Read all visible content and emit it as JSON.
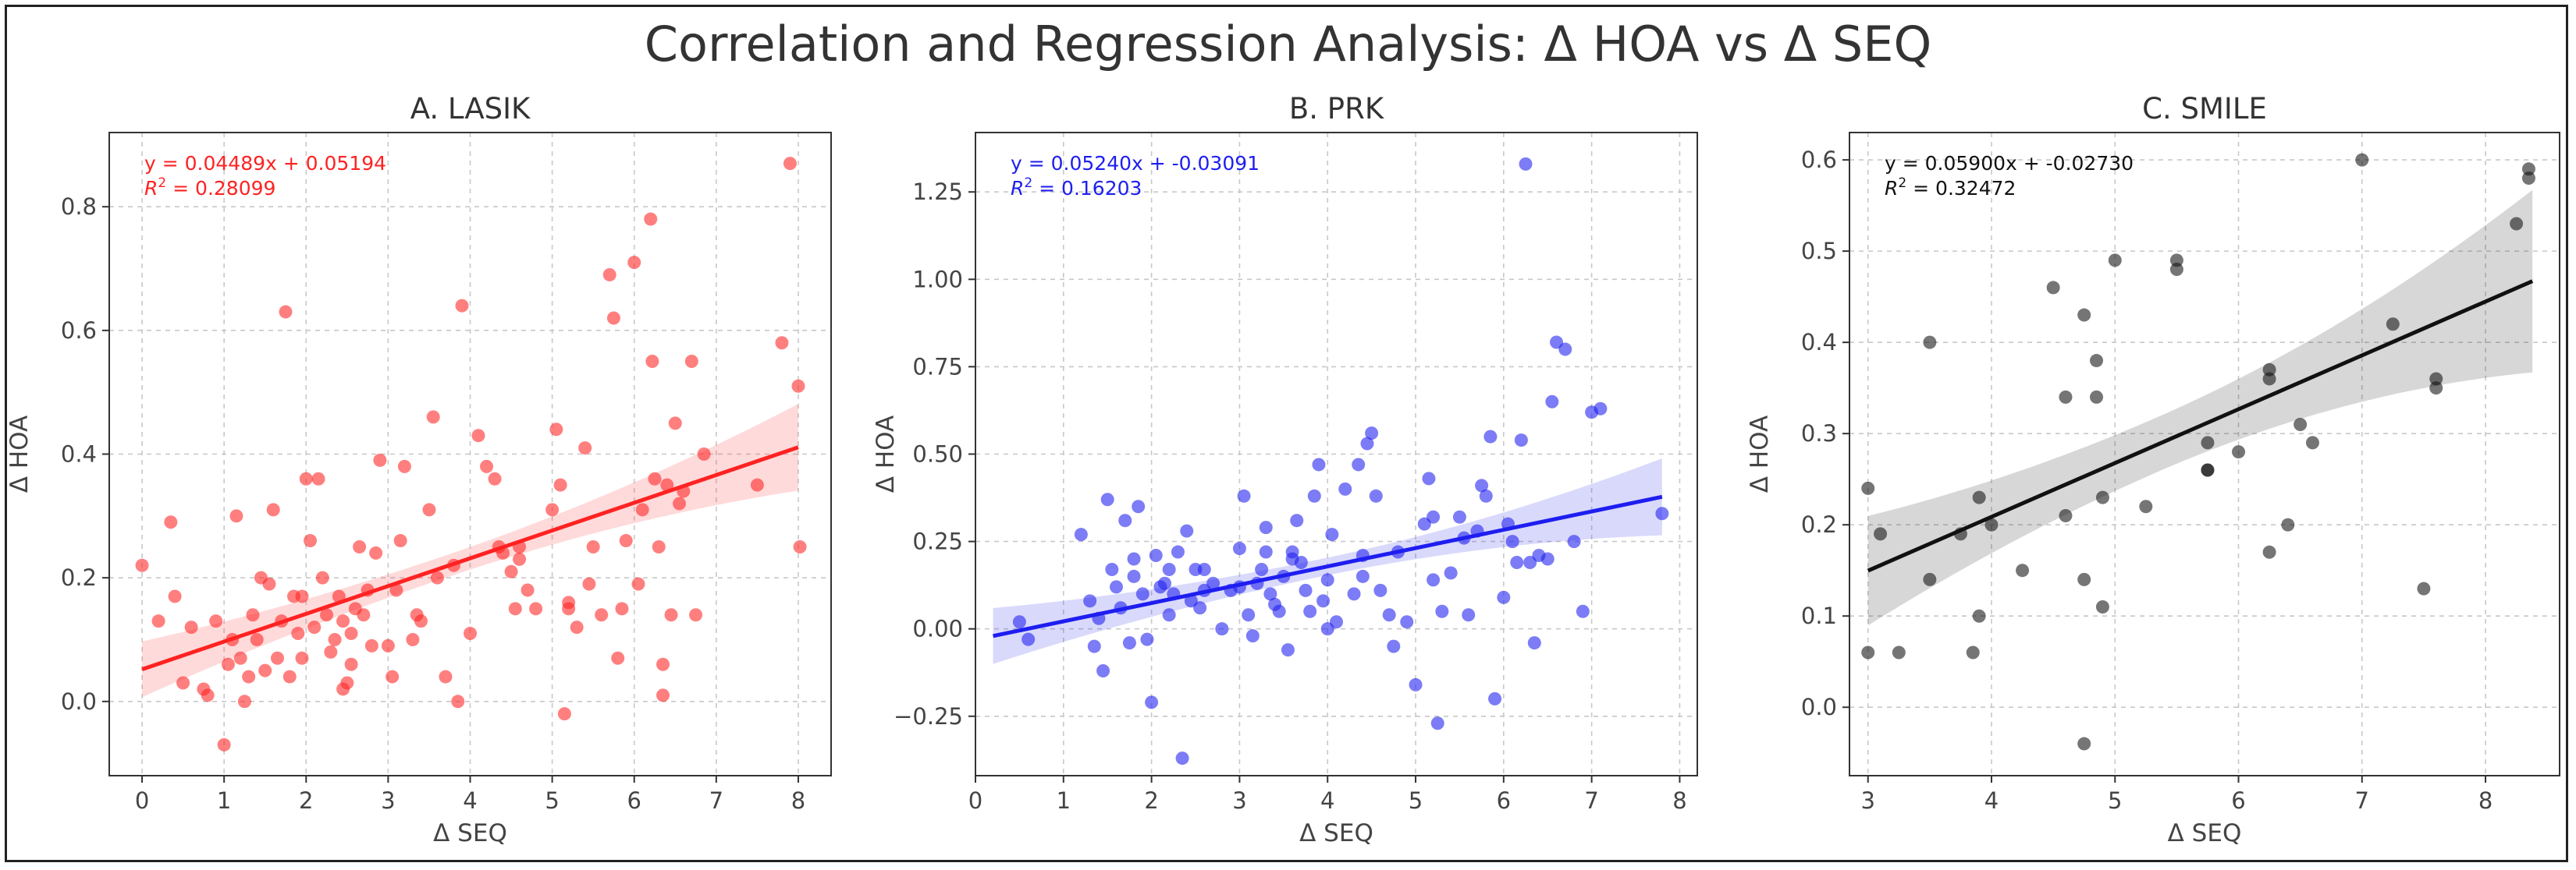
{
  "figure": {
    "title": "Correlation and Regression Analysis: Δ HOA vs Δ SEQ"
  },
  "chart_data": [
    {
      "panel": "A",
      "type": "scatter",
      "title": "A. LASIK",
      "xlabel": "Δ SEQ",
      "ylabel": "Δ HOA",
      "xlim": [
        -0.4,
        8.4
      ],
      "ylim": [
        -0.12,
        0.92
      ],
      "xticks": [
        0,
        1,
        2,
        3,
        4,
        5,
        6,
        7,
        8
      ],
      "yticks": [
        0.0,
        0.2,
        0.4,
        0.6,
        0.8
      ],
      "ytick_labels": [
        "0.0",
        "0.2",
        "0.4",
        "0.6",
        "0.8"
      ],
      "color": "#ff2222",
      "equation": "y = 0.04489x + 0.05194",
      "r2_prefix": "R",
      "r2_sup": "2",
      "r2_value": " = 0.28099",
      "slope": 0.04489,
      "intercept": 0.05194,
      "ci_halfwidth": {
        "at_mean": 0.018,
        "at_min": 0.045,
        "at_max": 0.07
      },
      "fit_range": [
        0,
        8
      ],
      "points": [
        [
          0,
          0.22
        ],
        [
          0.2,
          0.13
        ],
        [
          0.35,
          0.29
        ],
        [
          0.4,
          0.17
        ],
        [
          0.5,
          0.03
        ],
        [
          0.6,
          0.12
        ],
        [
          0.75,
          0.02
        ],
        [
          0.8,
          0.01
        ],
        [
          0.9,
          0.13
        ],
        [
          1.0,
          -0.07
        ],
        [
          1.05,
          0.06
        ],
        [
          1.1,
          0.1
        ],
        [
          1.15,
          0.3
        ],
        [
          1.2,
          0.07
        ],
        [
          1.25,
          0.0
        ],
        [
          1.3,
          0.04
        ],
        [
          1.35,
          0.14
        ],
        [
          1.4,
          0.1
        ],
        [
          1.45,
          0.2
        ],
        [
          1.5,
          0.05
        ],
        [
          1.55,
          0.19
        ],
        [
          1.6,
          0.31
        ],
        [
          1.65,
          0.07
        ],
        [
          1.7,
          0.13
        ],
        [
          1.75,
          0.63
        ],
        [
          1.8,
          0.04
        ],
        [
          1.85,
          0.17
        ],
        [
          1.9,
          0.11
        ],
        [
          1.95,
          0.07
        ],
        [
          2.0,
          0.36
        ],
        [
          2.05,
          0.26
        ],
        [
          2.1,
          0.12
        ],
        [
          2.15,
          0.36
        ],
        [
          2.2,
          0.2
        ],
        [
          2.25,
          0.14
        ],
        [
          2.3,
          0.08
        ],
        [
          2.35,
          0.1
        ],
        [
          2.4,
          0.17
        ],
        [
          2.45,
          0.02
        ],
        [
          2.5,
          0.03
        ],
        [
          2.55,
          0.11
        ],
        [
          2.6,
          0.15
        ],
        [
          2.65,
          0.25
        ],
        [
          2.7,
          0.14
        ],
        [
          2.75,
          0.18
        ],
        [
          2.8,
          0.09
        ],
        [
          2.85,
          0.24
        ],
        [
          2.9,
          0.39
        ],
        [
          3.0,
          0.09
        ],
        [
          3.05,
          0.04
        ],
        [
          3.1,
          0.18
        ],
        [
          3.15,
          0.26
        ],
        [
          3.2,
          0.38
        ],
        [
          3.3,
          0.1
        ],
        [
          3.4,
          0.13
        ],
        [
          3.5,
          0.31
        ],
        [
          3.55,
          0.46
        ],
        [
          3.6,
          0.2
        ],
        [
          3.7,
          0.04
        ],
        [
          3.8,
          0.22
        ],
        [
          3.85,
          0.0
        ],
        [
          3.9,
          0.64
        ],
        [
          4.0,
          0.11
        ],
        [
          4.1,
          0.43
        ],
        [
          4.2,
          0.38
        ],
        [
          4.3,
          0.36
        ],
        [
          4.35,
          0.25
        ],
        [
          4.4,
          0.24
        ],
        [
          4.5,
          0.21
        ],
        [
          4.55,
          0.15
        ],
        [
          4.6,
          0.25
        ],
        [
          4.7,
          0.18
        ],
        [
          4.8,
          0.15
        ],
        [
          5.0,
          0.31
        ],
        [
          5.05,
          0.44
        ],
        [
          5.1,
          0.35
        ],
        [
          5.15,
          -0.02
        ],
        [
          5.2,
          0.16
        ],
        [
          5.3,
          0.12
        ],
        [
          5.4,
          0.41
        ],
        [
          5.45,
          0.19
        ],
        [
          5.5,
          0.25
        ],
        [
          5.6,
          0.14
        ],
        [
          5.7,
          0.69
        ],
        [
          5.75,
          0.62
        ],
        [
          5.8,
          0.07
        ],
        [
          5.85,
          0.15
        ],
        [
          5.9,
          0.26
        ],
        [
          6.0,
          0.71
        ],
        [
          6.05,
          0.19
        ],
        [
          6.1,
          0.31
        ],
        [
          6.2,
          0.78
        ],
        [
          6.22,
          0.55
        ],
        [
          6.25,
          0.36
        ],
        [
          6.3,
          0.25
        ],
        [
          6.35,
          0.01
        ],
        [
          6.4,
          0.35
        ],
        [
          6.45,
          0.14
        ],
        [
          6.5,
          0.45
        ],
        [
          6.55,
          0.32
        ],
        [
          6.6,
          0.34
        ],
        [
          6.7,
          0.55
        ],
        [
          6.75,
          0.14
        ],
        [
          6.85,
          0.4
        ],
        [
          7.5,
          0.35
        ],
        [
          7.8,
          0.58
        ],
        [
          7.9,
          0.87
        ],
        [
          8.0,
          0.51
        ],
        [
          8.02,
          0.25
        ],
        [
          6.35,
          0.06
        ],
        [
          5.2,
          0.15
        ],
        [
          4.6,
          0.23
        ],
        [
          2.45,
          0.13
        ],
        [
          1.95,
          0.17
        ],
        [
          3.35,
          0.14
        ],
        [
          2.55,
          0.06
        ]
      ]
    },
    {
      "panel": "B",
      "type": "scatter",
      "title": "B. PRK",
      "xlabel": "Δ SEQ",
      "ylabel": "Δ HOA",
      "xlim": [
        0,
        8.2
      ],
      "ylim": [
        -0.42,
        1.42
      ],
      "xticks": [
        0,
        1,
        2,
        3,
        4,
        5,
        6,
        7,
        8
      ],
      "yticks": [
        -0.25,
        0.0,
        0.25,
        0.5,
        0.75,
        1.0,
        1.25
      ],
      "ytick_labels": [
        "−0.25",
        "0.00",
        "0.25",
        "0.50",
        "0.75",
        "1.00",
        "1.25"
      ],
      "color": "#1e1ef0",
      "equation": "y = 0.05240x + -0.03091",
      "r2_prefix": "R",
      "r2_sup": "2",
      "r2_value": " = 0.16203",
      "slope": 0.0524,
      "intercept": -0.03091,
      "ci_halfwidth": {
        "at_mean": 0.025,
        "at_min": 0.08,
        "at_max": 0.11
      },
      "fit_range": [
        0.2,
        7.8
      ],
      "points": [
        [
          0.5,
          0.02
        ],
        [
          0.6,
          -0.03
        ],
        [
          1.2,
          0.27
        ],
        [
          1.3,
          0.08
        ],
        [
          1.35,
          -0.05
        ],
        [
          1.4,
          0.03
        ],
        [
          1.45,
          -0.12
        ],
        [
          1.5,
          0.37
        ],
        [
          1.55,
          0.17
        ],
        [
          1.6,
          0.12
        ],
        [
          1.65,
          0.06
        ],
        [
          1.7,
          0.31
        ],
        [
          1.75,
          -0.04
        ],
        [
          1.8,
          0.15
        ],
        [
          1.85,
          0.35
        ],
        [
          1.9,
          0.1
        ],
        [
          1.95,
          -0.03
        ],
        [
          2.0,
          -0.21
        ],
        [
          2.05,
          0.21
        ],
        [
          2.1,
          0.12
        ],
        [
          2.15,
          0.13
        ],
        [
          2.2,
          0.04
        ],
        [
          2.25,
          0.1
        ],
        [
          2.3,
          0.22
        ],
        [
          2.35,
          -0.37
        ],
        [
          2.4,
          0.28
        ],
        [
          2.45,
          0.08
        ],
        [
          2.5,
          0.17
        ],
        [
          2.55,
          0.06
        ],
        [
          2.6,
          0.11
        ],
        [
          2.7,
          0.13
        ],
        [
          2.8,
          0.0
        ],
        [
          2.9,
          0.11
        ],
        [
          3.0,
          0.23
        ],
        [
          3.05,
          0.38
        ],
        [
          3.1,
          0.04
        ],
        [
          3.15,
          -0.02
        ],
        [
          3.2,
          0.13
        ],
        [
          3.25,
          0.17
        ],
        [
          3.3,
          0.29
        ],
        [
          3.35,
          0.1
        ],
        [
          3.4,
          0.07
        ],
        [
          3.45,
          0.05
        ],
        [
          3.5,
          0.15
        ],
        [
          3.55,
          -0.06
        ],
        [
          3.6,
          0.22
        ],
        [
          3.65,
          0.31
        ],
        [
          3.7,
          0.19
        ],
        [
          3.75,
          0.11
        ],
        [
          3.8,
          0.05
        ],
        [
          3.85,
          0.38
        ],
        [
          3.9,
          0.47
        ],
        [
          3.95,
          0.08
        ],
        [
          4.0,
          0.14
        ],
        [
          4.05,
          0.27
        ],
        [
          4.1,
          0.02
        ],
        [
          4.2,
          0.4
        ],
        [
          4.3,
          0.1
        ],
        [
          4.35,
          0.47
        ],
        [
          4.4,
          0.15
        ],
        [
          4.45,
          0.53
        ],
        [
          4.5,
          0.56
        ],
        [
          4.55,
          0.38
        ],
        [
          4.6,
          0.11
        ],
        [
          4.7,
          0.04
        ],
        [
          4.75,
          -0.05
        ],
        [
          4.8,
          0.22
        ],
        [
          4.9,
          0.02
        ],
        [
          5.0,
          -0.16
        ],
        [
          5.1,
          0.3
        ],
        [
          5.15,
          0.43
        ],
        [
          5.2,
          0.14
        ],
        [
          5.25,
          -0.27
        ],
        [
          5.3,
          0.05
        ],
        [
          5.4,
          0.16
        ],
        [
          5.5,
          0.32
        ],
        [
          5.55,
          0.26
        ],
        [
          5.6,
          0.04
        ],
        [
          5.7,
          0.28
        ],
        [
          5.75,
          0.41
        ],
        [
          5.8,
          0.38
        ],
        [
          5.85,
          0.55
        ],
        [
          5.9,
          -0.2
        ],
        [
          6.0,
          0.09
        ],
        [
          6.05,
          0.3
        ],
        [
          6.1,
          0.25
        ],
        [
          6.15,
          0.19
        ],
        [
          6.2,
          0.54
        ],
        [
          6.25,
          1.33
        ],
        [
          6.3,
          0.19
        ],
        [
          6.35,
          -0.04
        ],
        [
          6.4,
          0.21
        ],
        [
          6.5,
          0.2
        ],
        [
          6.55,
          0.65
        ],
        [
          6.6,
          0.82
        ],
        [
          6.7,
          0.8
        ],
        [
          6.8,
          0.25
        ],
        [
          6.9,
          0.05
        ],
        [
          7.0,
          0.62
        ],
        [
          7.1,
          0.63
        ],
        [
          7.8,
          0.33
        ],
        [
          2.2,
          0.17
        ],
        [
          2.6,
          0.17
        ],
        [
          3.0,
          0.12
        ],
        [
          4.4,
          0.21
        ],
        [
          5.2,
          0.32
        ],
        [
          3.6,
          0.2
        ],
        [
          4.0,
          0.0
        ],
        [
          1.8,
          0.2
        ],
        [
          3.3,
          0.22
        ]
      ]
    },
    {
      "panel": "C",
      "type": "scatter",
      "title": "C. SMILE",
      "xlabel": "Δ SEQ",
      "ylabel": "Δ HOA",
      "xlim": [
        2.85,
        8.6
      ],
      "ylim": [
        -0.075,
        0.63
      ],
      "xticks": [
        3,
        4,
        5,
        6,
        7,
        8
      ],
      "yticks": [
        0.0,
        0.1,
        0.2,
        0.3,
        0.4,
        0.5,
        0.6
      ],
      "ytick_labels": [
        "0.0",
        "0.1",
        "0.2",
        "0.3",
        "0.4",
        "0.5",
        "0.6"
      ],
      "color": "#111111",
      "equation": "y = 0.05900x + -0.02730",
      "r2_prefix": "R",
      "r2_sup": "2",
      "r2_value": " = 0.32472",
      "slope": 0.059,
      "intercept": -0.0273,
      "ci_halfwidth": {
        "at_mean": 0.03,
        "at_min": 0.06,
        "at_max": 0.1
      },
      "fit_range": [
        3.0,
        8.38
      ],
      "points": [
        [
          3.0,
          0.06
        ],
        [
          3.0,
          0.24
        ],
        [
          3.1,
          0.19
        ],
        [
          3.25,
          0.06
        ],
        [
          3.5,
          0.4
        ],
        [
          3.5,
          0.14
        ],
        [
          3.75,
          0.19
        ],
        [
          3.85,
          0.06
        ],
        [
          3.9,
          0.1
        ],
        [
          3.9,
          0.23
        ],
        [
          4.0,
          0.2
        ],
        [
          4.25,
          0.15
        ],
        [
          4.5,
          0.46
        ],
        [
          4.6,
          0.21
        ],
        [
          4.6,
          0.34
        ],
        [
          4.75,
          0.43
        ],
        [
          4.75,
          -0.04
        ],
        [
          4.75,
          0.14
        ],
        [
          4.85,
          0.38
        ],
        [
          4.85,
          0.34
        ],
        [
          4.9,
          0.11
        ],
        [
          4.9,
          0.23
        ],
        [
          5.0,
          0.49
        ],
        [
          5.25,
          0.22
        ],
        [
          5.5,
          0.49
        ],
        [
          5.5,
          0.48
        ],
        [
          5.75,
          0.29
        ],
        [
          5.75,
          0.26
        ],
        [
          5.75,
          0.26
        ],
        [
          6.0,
          0.28
        ],
        [
          6.25,
          0.37
        ],
        [
          6.25,
          0.36
        ],
        [
          6.25,
          0.17
        ],
        [
          6.4,
          0.2
        ],
        [
          6.5,
          0.31
        ],
        [
          6.6,
          0.29
        ],
        [
          7.0,
          0.6
        ],
        [
          7.25,
          0.42
        ],
        [
          7.5,
          0.13
        ],
        [
          7.6,
          0.36
        ],
        [
          7.6,
          0.35
        ],
        [
          8.25,
          0.53
        ],
        [
          8.35,
          0.59
        ],
        [
          8.35,
          0.58
        ]
      ]
    }
  ]
}
